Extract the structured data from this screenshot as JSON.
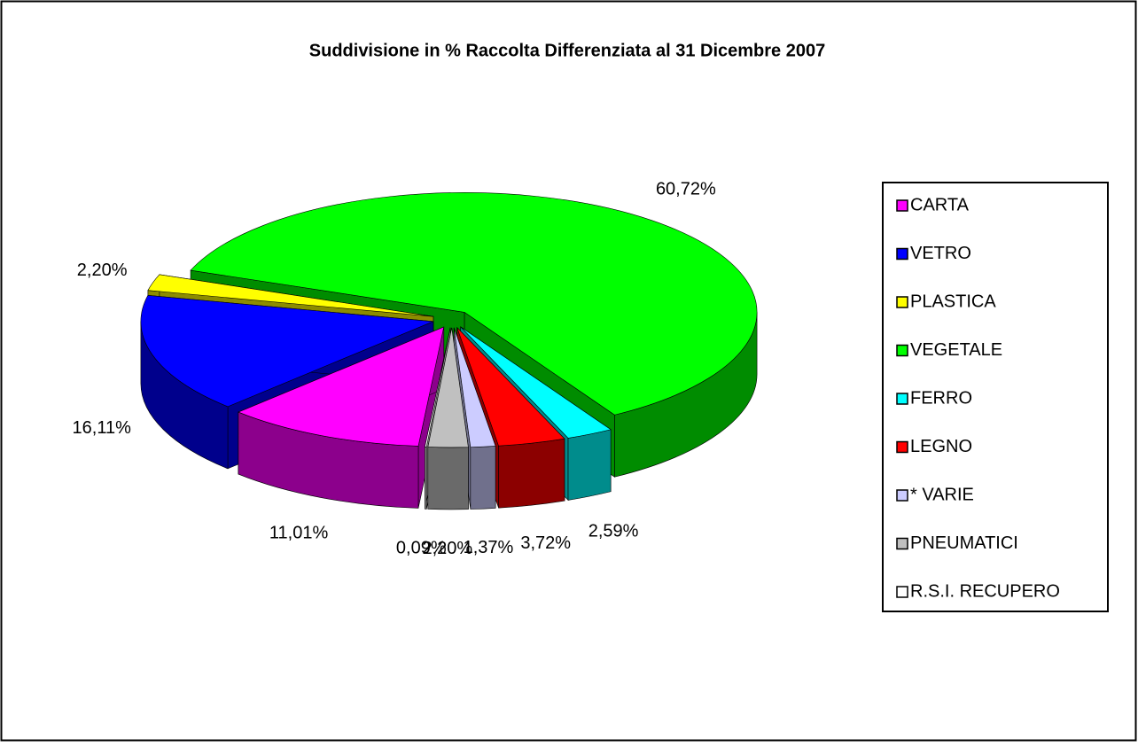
{
  "chart_data": {
    "type": "pie",
    "title": "Suddivisione in % Raccolta Differenziata al 31 Dicembre 2007",
    "categories": [
      "CARTA",
      "VETRO",
      "PLASTICA",
      "VEGETALE",
      "FERRO",
      "LEGNO",
      "* VARIE",
      "PNEUMATICI",
      "R.S.I. RECUPERO"
    ],
    "values": [
      11.01,
      16.11,
      2.2,
      60.72,
      2.59,
      3.72,
      1.37,
      2.2,
      0.09
    ],
    "value_labels": [
      "11,01%",
      "16,11%",
      "2,20%",
      "60,72%",
      "2,59%",
      "3,72%",
      "1,37%",
      "2,20%",
      "0,09%"
    ],
    "colors": [
      "#ff00ff",
      "#0000ff",
      "#ffff00",
      "#00ff00",
      "#00ffff",
      "#ff0000",
      "#ccccff",
      "#c0c0c0",
      "#ffffff"
    ],
    "legend": "right"
  }
}
